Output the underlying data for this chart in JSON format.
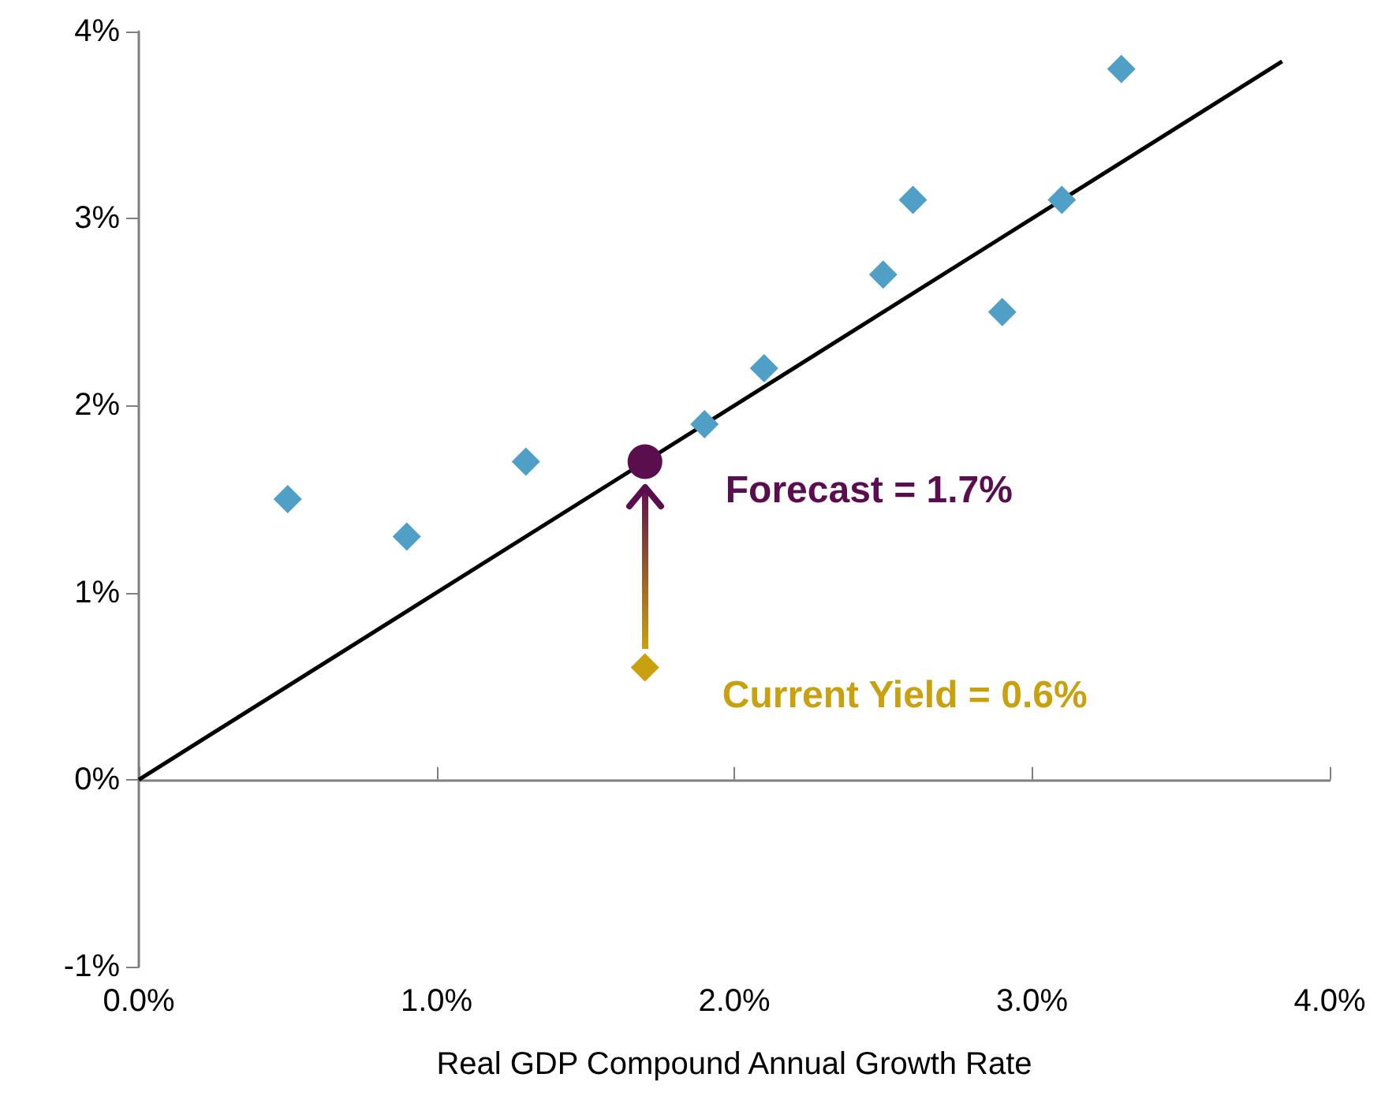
{
  "chart_data": {
    "type": "scatter",
    "xlabel": "Real GDP Compound Annual Growth Rate",
    "xlim": [
      0,
      4
    ],
    "xticks": [
      {
        "value": 0,
        "label": "0.0%"
      },
      {
        "value": 1,
        "label": "1.0%"
      },
      {
        "value": 2,
        "label": "2.0%"
      },
      {
        "value": 3,
        "label": "3.0%"
      },
      {
        "value": 4,
        "label": "4.0%"
      }
    ],
    "ylim": [
      -1,
      4
    ],
    "yticks": [
      {
        "value": -1,
        "label": "-1%"
      },
      {
        "value": 0,
        "label": "0%"
      },
      {
        "value": 1,
        "label": "1%"
      },
      {
        "value": 2,
        "label": "2%"
      },
      {
        "value": 3,
        "label": "3%"
      },
      {
        "value": 4,
        "label": "4%"
      }
    ],
    "series": [
      {
        "marker": "diamond",
        "color": "#4f9fc7",
        "x": [
          0.5,
          0.9,
          1.3,
          1.9,
          2.1,
          2.5,
          2.6,
          2.9,
          3.1,
          3.3
        ],
        "values": [
          1.5,
          1.3,
          1.7,
          1.9,
          2.2,
          2.7,
          3.1,
          2.5,
          3.1,
          3.8
        ]
      },
      {
        "type": "line",
        "marker": "none",
        "line_style": "solid",
        "color": "#000000",
        "x": [
          0,
          3.84
        ],
        "values": [
          0,
          3.84
        ]
      },
      {
        "type": "scatter",
        "marker": "diamond",
        "name": "Current Yield = 0.6%",
        "color": "#c9a10f",
        "x": [
          1.7
        ],
        "values": [
          0.6
        ]
      },
      {
        "type": "scatter",
        "marker": "circle",
        "name": "Forecast = 1.7%",
        "color": "#5a0e4e",
        "x": [
          1.7
        ],
        "values": [
          1.7
        ]
      }
    ]
  }
}
